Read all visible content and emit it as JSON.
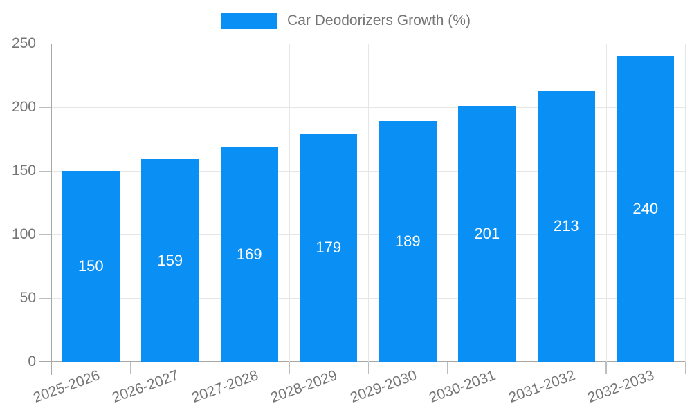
{
  "chart_data": {
    "type": "bar",
    "title": "Car Deodorizers Growth (%)",
    "legend": {
      "label": "Car Deodorizers Growth (%)",
      "position": "top-center",
      "swatch_color": "#0a90f5"
    },
    "categories": [
      "2025-2026",
      "2026-2027",
      "2027-2028",
      "2028-2029",
      "2029-2030",
      "2030-2031",
      "2031-2032",
      "2032-2033"
    ],
    "values": [
      150,
      159,
      169,
      179,
      189,
      201,
      213,
      240
    ],
    "value_labels": [
      "150",
      "159",
      "169",
      "179",
      "189",
      "201",
      "213",
      "240"
    ],
    "xlabel": "",
    "ylabel": "",
    "ylim": [
      0,
      250
    ],
    "yticks": [
      0,
      50,
      100,
      150,
      200,
      250
    ],
    "grid": true,
    "x_tick_rotation_deg": -20,
    "bar_color": "#0a90f5",
    "value_label_color": "#ffffff",
    "axis_text_color": "#757575",
    "grid_color": "#e6e6e6",
    "axis_line_color": "#a8a8a8",
    "tick_color": "#bdbdbd",
    "background_color": "#ffffff"
  }
}
